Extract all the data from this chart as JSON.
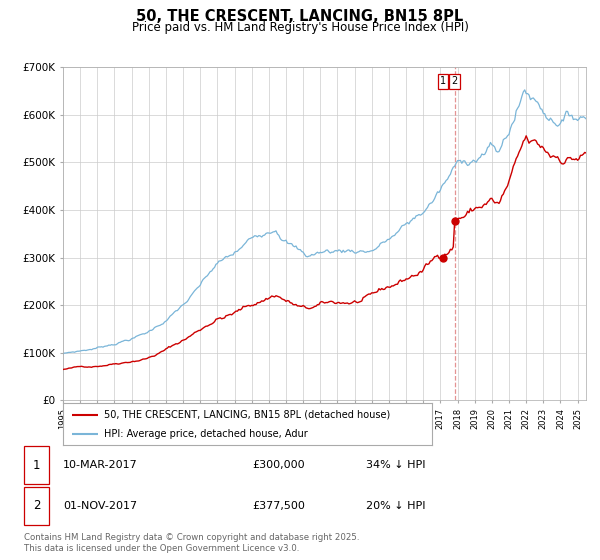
{
  "title": "50, THE CRESCENT, LANCING, BN15 8PL",
  "subtitle": "Price paid vs. HM Land Registry's House Price Index (HPI)",
  "hpi_color": "#7ab5d8",
  "price_color": "#cc0000",
  "marker_color": "#cc0000",
  "vline_color": "#e08080",
  "grid_color": "#cccccc",
  "legend1": "50, THE CRESCENT, LANCING, BN15 8PL (detached house)",
  "legend2": "HPI: Average price, detached house, Adur",
  "transaction1_label": "1",
  "transaction1_date": "10-MAR-2017",
  "transaction1_price": "£300,000",
  "transaction1_note": "34% ↓ HPI",
  "transaction2_label": "2",
  "transaction2_date": "01-NOV-2017",
  "transaction2_price": "£377,500",
  "transaction2_note": "20% ↓ HPI",
  "footer": "Contains HM Land Registry data © Crown copyright and database right 2025.\nThis data is licensed under the Open Government Licence v3.0.",
  "ylim": [
    0,
    700000
  ],
  "yticks": [
    0,
    100000,
    200000,
    300000,
    400000,
    500000,
    600000,
    700000
  ],
  "ytick_labels": [
    "£0",
    "£100K",
    "£200K",
    "£300K",
    "£400K",
    "£500K",
    "£600K",
    "£700K"
  ],
  "transaction1_year": 2017.18,
  "transaction1_val": 300000,
  "transaction2_year": 2017.83,
  "transaction2_val": 377500,
  "vline_year": 2017.83,
  "xstart": 1995,
  "xend": 2025
}
